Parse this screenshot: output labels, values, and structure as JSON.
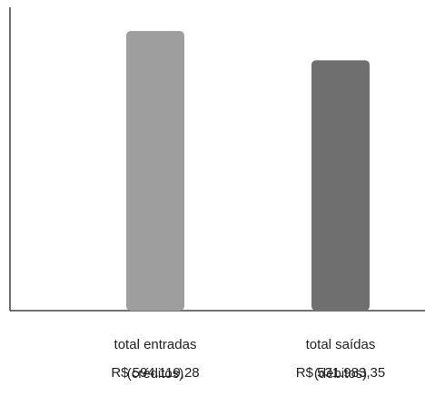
{
  "chart_data": {
    "type": "bar",
    "categories": [
      {
        "line1": "total entradas",
        "line2": "(créditos)"
      },
      {
        "line1": "total saídas",
        "line2": "(débitos)"
      }
    ],
    "values": [
      594119.28,
      531983.35
    ],
    "value_labels": [
      "R$ 594.119,28",
      "R$ 531.983,35"
    ],
    "title": "",
    "xlabel": "",
    "ylabel": "",
    "ylim": [
      0,
      660000
    ],
    "grid": false,
    "colors": [
      "#9e9e9e",
      "#6f6f6f"
    ]
  }
}
